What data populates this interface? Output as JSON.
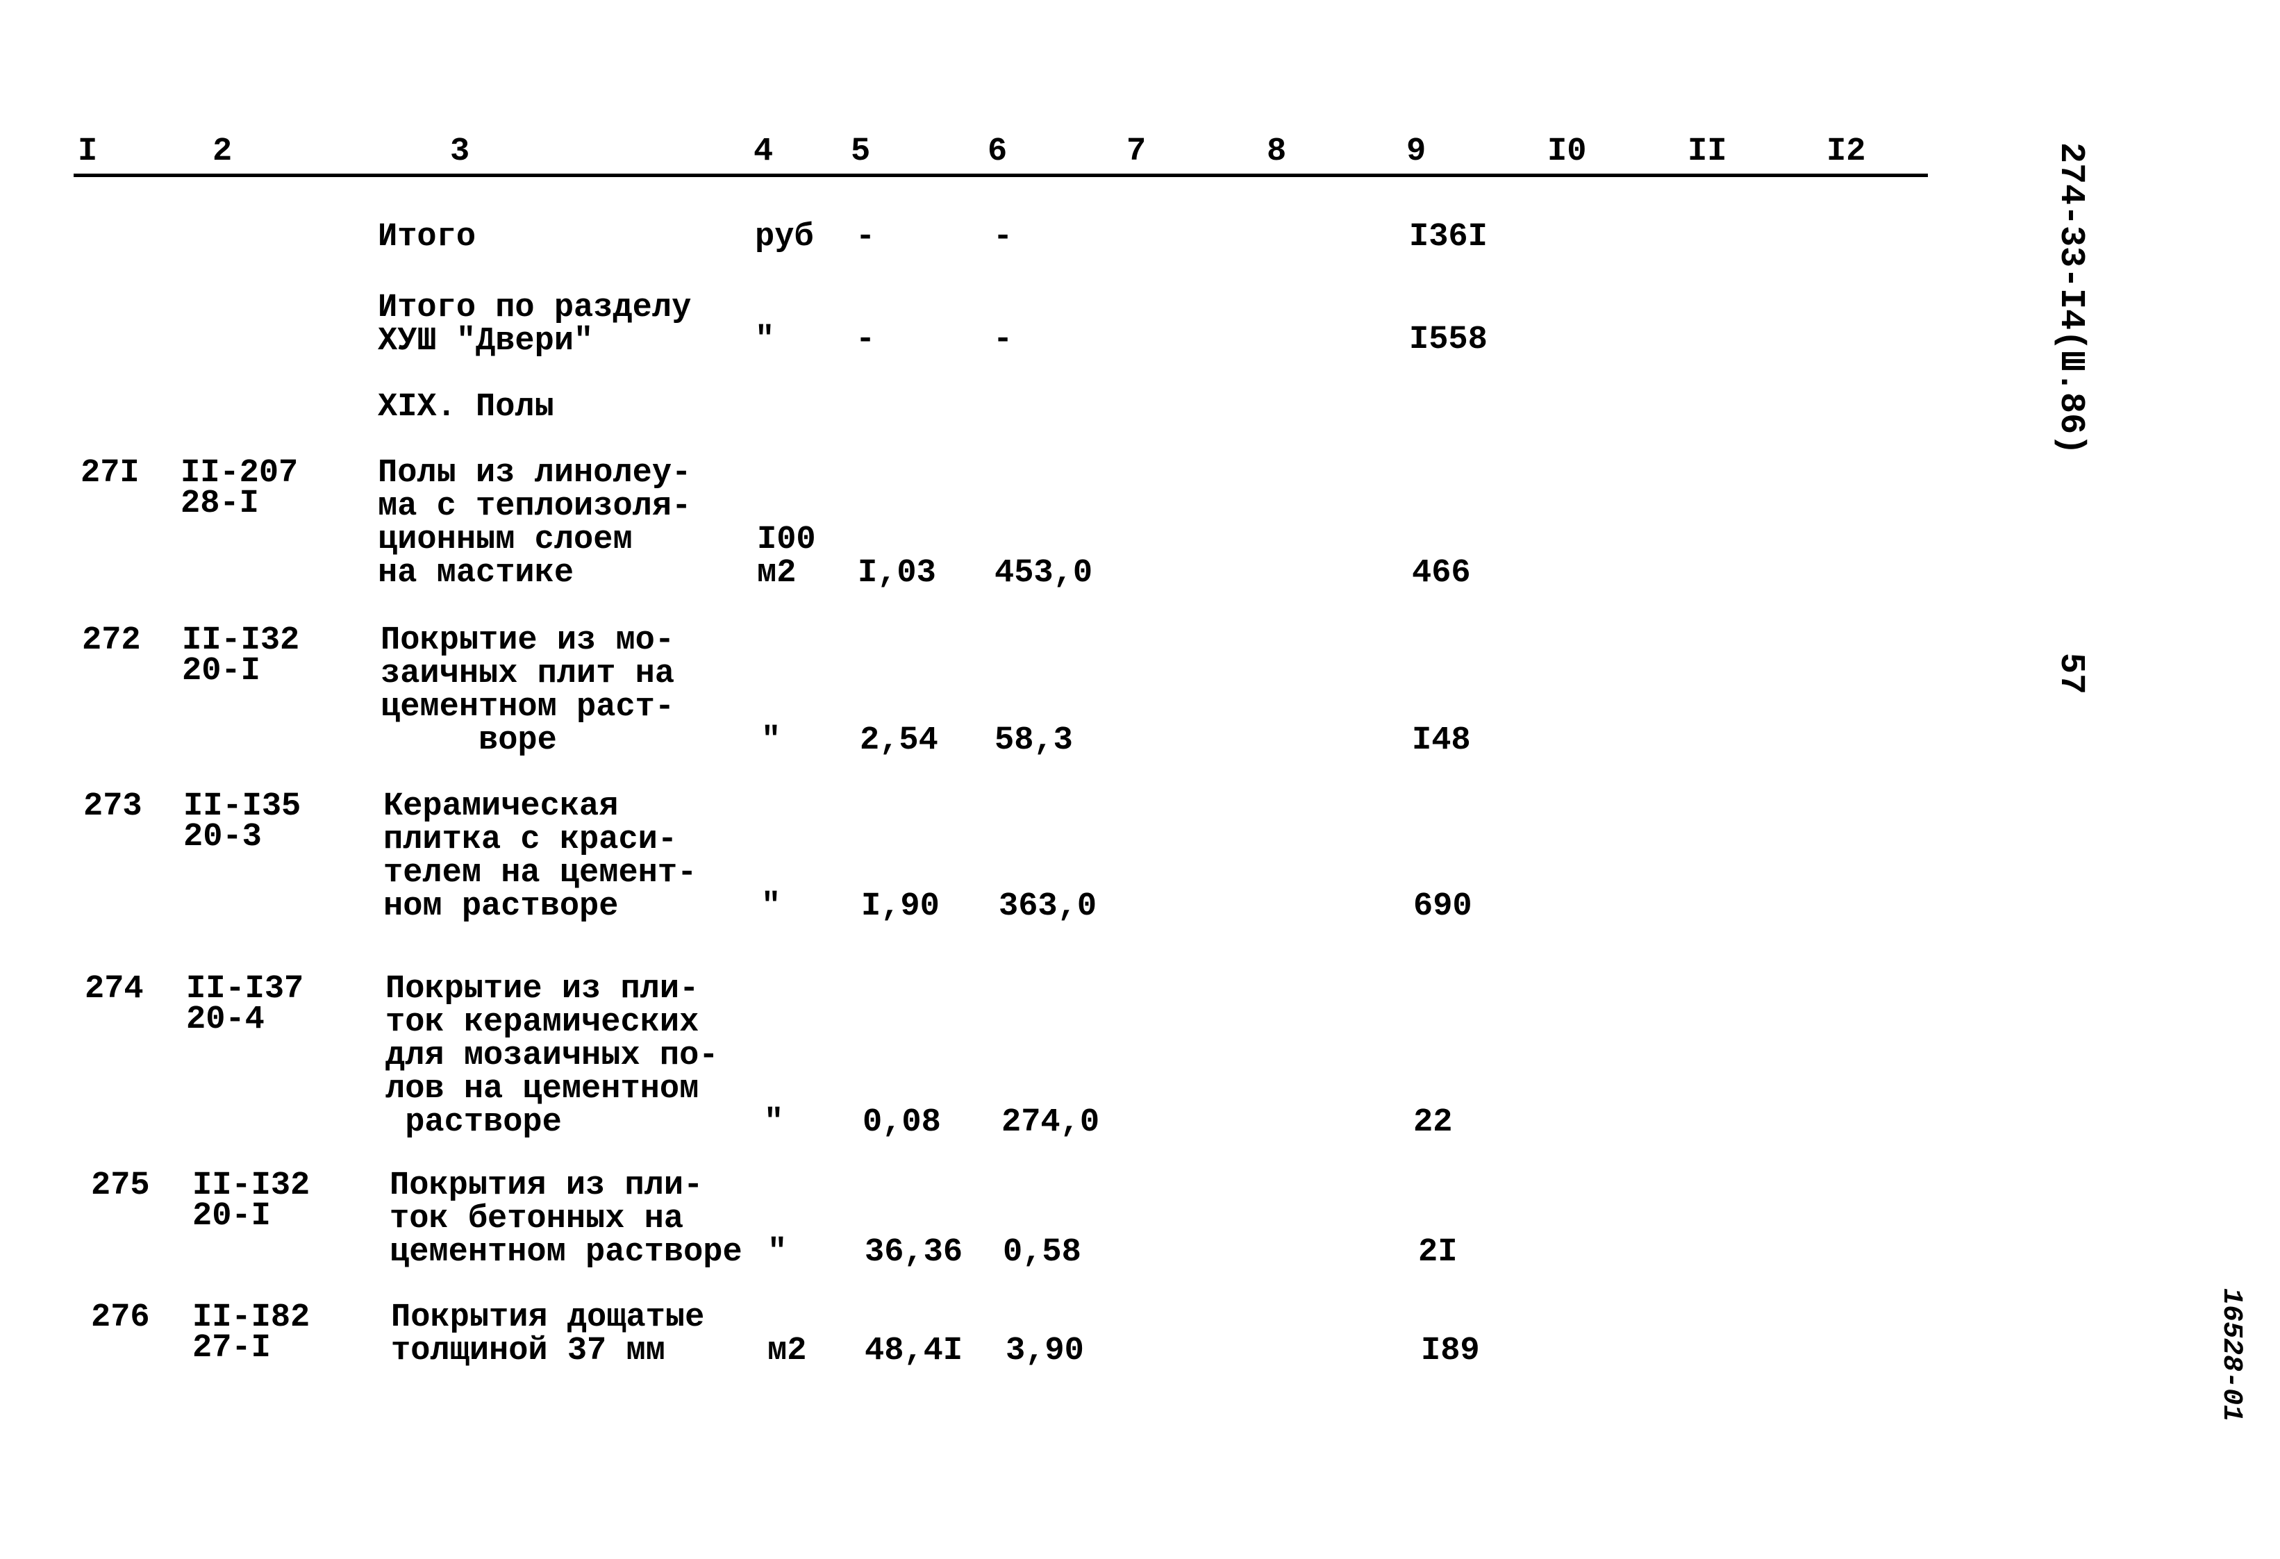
{
  "header": {
    "columns": [
      "I",
      "2",
      "3",
      "4",
      "5",
      "6",
      "7",
      "8",
      "9",
      "I0",
      "II",
      "I2"
    ]
  },
  "summary": [
    {
      "col3": [
        "Итого"
      ],
      "col4": "руб",
      "col5": "-",
      "col6": "-",
      "col9": "I36I"
    },
    {
      "col3": [
        "Итого по разделу",
        "ХУШ \"Двери\""
      ],
      "col4": "\"",
      "col5": "-",
      "col6": "-",
      "col9": "I558"
    }
  ],
  "section_title": "XIX. Полы",
  "rows": [
    {
      "col1": "27I",
      "col2": [
        "II-207",
        "28-I"
      ],
      "col3": [
        "Полы из линолеу-",
        "ма с теплоизоля-",
        "ционным слоем",
        "на мастике"
      ],
      "col4": [
        "I00",
        "м2"
      ],
      "col5": "I,03",
      "col6": "453,0",
      "col9": "466"
    },
    {
      "col1": "272",
      "col2": [
        "II-I32",
        "20-I"
      ],
      "col3": [
        "Покрытие из мо-",
        "заичных плит на",
        "цементном раст-",
        "     воре"
      ],
      "col4": [
        "\""
      ],
      "col5": "2,54",
      "col6": "58,3",
      "col9": "I48"
    },
    {
      "col1": "273",
      "col2": [
        "II-I35",
        "20-3"
      ],
      "col3": [
        "Керамическая",
        "плитка с краси-",
        "телем на цемент-",
        "ном растворе"
      ],
      "col4": [
        "\""
      ],
      "col5": "I,90",
      "col6": "363,0",
      "col9": "690"
    },
    {
      "col1": "274",
      "col2": [
        "II-I37",
        "20-4"
      ],
      "col3": [
        "Покрытие из пли-",
        "ток керамических",
        "для мозаичных по-",
        "лов на цементном",
        " растворе"
      ],
      "col4": [
        "\""
      ],
      "col5": "0,08",
      "col6": "274,0",
      "col9": "22"
    },
    {
      "col1": "275",
      "col2": [
        "II-I32",
        "20-I"
      ],
      "col3": [
        "Покрытия из пли-",
        "ток бетонных на",
        "цементном растворе"
      ],
      "col4": [
        "\""
      ],
      "col5": "36,36",
      "col6": "0,58",
      "col9": "2I"
    },
    {
      "col1": "276",
      "col2": [
        "II-I82",
        "27-I"
      ],
      "col3": [
        "Покрытия дощатые",
        "толщиной 37 мм"
      ],
      "col4": [
        "м2"
      ],
      "col5": "48,4I",
      "col6": "3,90",
      "col9": "I89"
    }
  ],
  "margin": {
    "doc_code": "274-33-I4(Ш.86)",
    "page_number": "57",
    "stamp": "16528-01"
  }
}
